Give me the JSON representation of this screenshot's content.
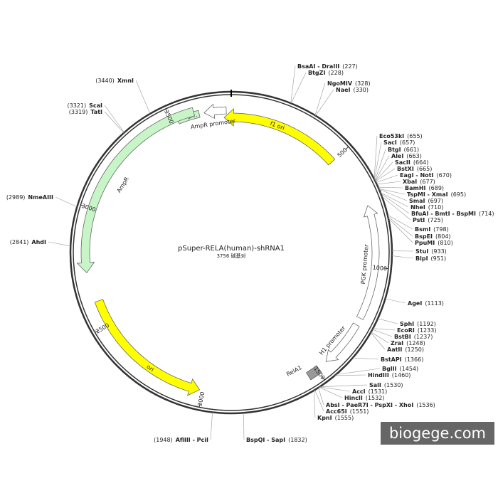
{
  "title": "pSuper-RELA(human)-shRNA1",
  "subtitle": "3756 碱基对",
  "features": [
    {
      "label": "f1 ori"
    },
    {
      "label": "AmpR promoter"
    },
    {
      "label": "si..."
    },
    {
      "label": "AmpR"
    },
    {
      "label": "ori"
    },
    {
      "label": "PGK promoter"
    },
    {
      "label": "H1 promoter"
    },
    {
      "label": "RelA1"
    }
  ],
  "ticks": [
    500,
    1000,
    1500,
    2000,
    2500,
    3000,
    3500
  ],
  "sites": [
    {
      "name": "BsaAI - DraIII",
      "pos": "(227)"
    },
    {
      "name": "BtgZI",
      "pos": "(228)"
    },
    {
      "name": "NgoMIV",
      "pos": "(328)"
    },
    {
      "name": "NaeI",
      "pos": "(330)"
    },
    {
      "name": "Eco53kI",
      "pos": "(655)"
    },
    {
      "name": "SacI",
      "pos": "(657)"
    },
    {
      "name": "BtgI",
      "pos": "(661)"
    },
    {
      "name": "AleI",
      "pos": "(663)"
    },
    {
      "name": "SacII",
      "pos": "(664)"
    },
    {
      "name": "BstXI",
      "pos": "(665)"
    },
    {
      "name": "EagI - NotI",
      "pos": "(670)"
    },
    {
      "name": "XbaI",
      "pos": "(677)"
    },
    {
      "name": "BamHI",
      "pos": "(689)"
    },
    {
      "name": "TspMI - XmaI",
      "pos": "(695)"
    },
    {
      "name": "SmaI",
      "pos": "(697)"
    },
    {
      "name": "NheI",
      "pos": "(710)"
    },
    {
      "name": "BfuAI - BmtI - BspMI",
      "pos": "(714)"
    },
    {
      "name": "PstI",
      "pos": "(725)"
    },
    {
      "name": "BsmI",
      "pos": "(798)"
    },
    {
      "name": "BspEI",
      "pos": "(804)"
    },
    {
      "name": "PpuMI",
      "pos": "(810)"
    },
    {
      "name": "StuI",
      "pos": "(933)"
    },
    {
      "name": "BlpI",
      "pos": "(951)"
    },
    {
      "name": "AgeI",
      "pos": "(1113)"
    },
    {
      "name": "SphI",
      "pos": "(1192)"
    },
    {
      "name": "EcoRI",
      "pos": "(1233)"
    },
    {
      "name": "BstBI",
      "pos": "(1237)"
    },
    {
      "name": "ZraI",
      "pos": "(1248)"
    },
    {
      "name": "AatII",
      "pos": "(1250)"
    },
    {
      "name": "BstAPI",
      "pos": "(1366)"
    },
    {
      "name": "BglII",
      "pos": "(1454)"
    },
    {
      "name": "HindIII",
      "pos": "(1460)"
    },
    {
      "name": "SalI",
      "pos": "(1530)"
    },
    {
      "name": "AccI",
      "pos": "(1531)"
    },
    {
      "name": "HincII",
      "pos": "(1532)"
    },
    {
      "name": "AbsI - PaeR7I - PspXI - XhoI",
      "pos": "(1536)"
    },
    {
      "name": "Acc65I",
      "pos": "(1551)"
    },
    {
      "name": "KpnI",
      "pos": "(1555)"
    },
    {
      "name": "BspQI - SapI",
      "pos": "(1832)"
    },
    {
      "name": "AflIII - PciI",
      "pos": "(1948)"
    },
    {
      "name": "AhdI",
      "pos": "(2841)"
    },
    {
      "name": "NmeAIII",
      "pos": "(2989)"
    },
    {
      "name": "TatI",
      "pos": "(3319)"
    },
    {
      "name": "ScaI",
      "pos": "(3321)"
    },
    {
      "name": "XmnI",
      "pos": "(3440)"
    }
  ],
  "watermark": "biogege.com"
}
